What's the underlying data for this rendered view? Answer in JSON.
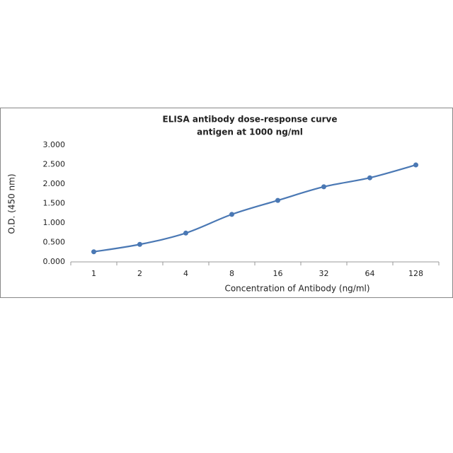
{
  "chart_data": {
    "type": "line",
    "title": "ELISA antibody dose-response curve",
    "subtitle": "antigen at 1000 ng/ml",
    "x_label": "Concentration of Antibody (ng/ml)",
    "y_label": "O.D. (450 nm)",
    "categories": [
      "1",
      "2",
      "4",
      "8",
      "16",
      "32",
      "64",
      "128"
    ],
    "series": [
      {
        "name": "O.D.",
        "color": "#4a78b4",
        "values": [
          0.26,
          0.45,
          0.74,
          1.22,
          1.58,
          1.93,
          2.16,
          2.49
        ]
      }
    ],
    "ylim": [
      0,
      3
    ],
    "yticks": [
      {
        "value": 0,
        "label": "0.000"
      },
      {
        "value": 0.5,
        "label": "0.500"
      },
      {
        "value": 1,
        "label": "1.000"
      },
      {
        "value": 1.5,
        "label": "1.500"
      },
      {
        "value": 2,
        "label": "2.000"
      },
      {
        "value": 2.5,
        "label": "2.500"
      },
      {
        "value": 3,
        "label": "3.000"
      }
    ],
    "grid": false
  }
}
